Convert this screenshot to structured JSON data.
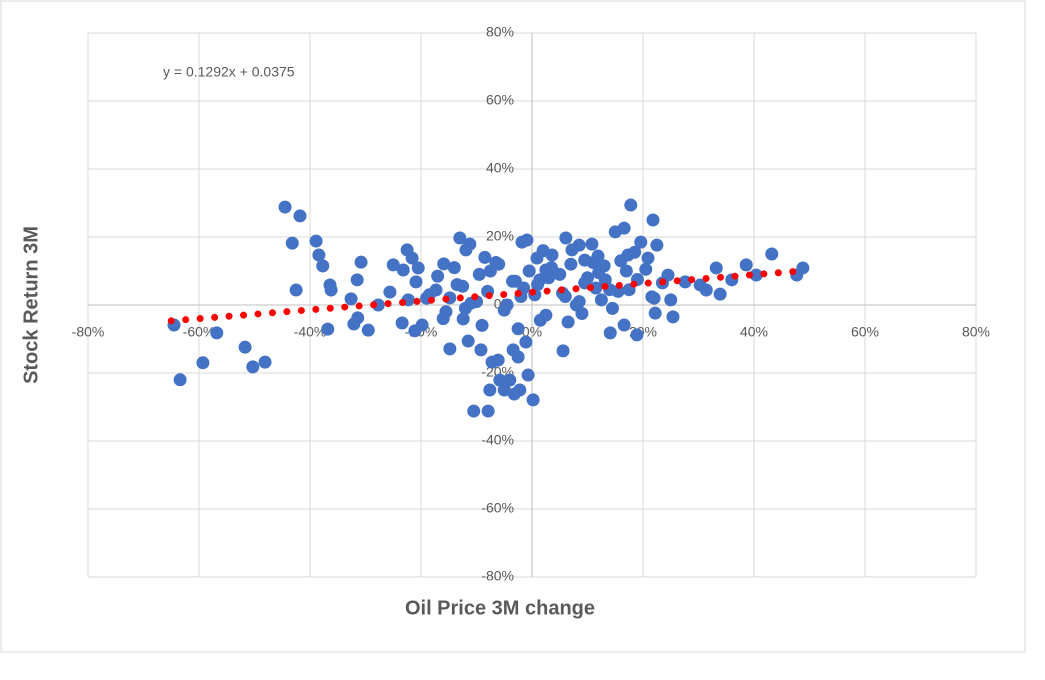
{
  "chart_data": {
    "type": "scatter",
    "x_label": "Oil Price 3M change",
    "y_label": "Stock Return 3M",
    "annotation": "y = 0.1292x + 0.0375",
    "xlim": [
      -80,
      80
    ],
    "ylim": [
      -80,
      80
    ],
    "xticks": [
      {
        "value": -80,
        "label": "-80%"
      },
      {
        "value": -60,
        "label": "-60%"
      },
      {
        "value": -40,
        "label": "-40%"
      },
      {
        "value": -20,
        "label": "-20%"
      },
      {
        "value": 0,
        "label": "0%"
      },
      {
        "value": 20,
        "label": "20%"
      },
      {
        "value": 40,
        "label": "40%"
      },
      {
        "value": 60,
        "label": "60%"
      },
      {
        "value": 80,
        "label": "80%"
      }
    ],
    "yticks": [
      {
        "value": -80,
        "label": "-80%"
      },
      {
        "value": -60,
        "label": "-60%"
      },
      {
        "value": -40,
        "label": "-40%"
      },
      {
        "value": -20,
        "label": "-20%"
      },
      {
        "value": 0,
        "label": "0%"
      },
      {
        "value": 20,
        "label": "20%"
      },
      {
        "value": 40,
        "label": "40%"
      },
      {
        "value": 60,
        "label": "60%"
      },
      {
        "value": 80,
        "label": "80%"
      }
    ],
    "grid": true,
    "series": [
      {
        "color": "#4472c4",
        "x": [
          -64.5,
          -63.4,
          -59.3,
          -56.8,
          -51.7,
          -50.3,
          -48.1,
          -44.5,
          -43.2,
          -41.8,
          -42.5,
          -38.9,
          -38.4,
          -37.7,
          -36.4,
          -36.2,
          -36.8,
          -32.6,
          -31.5,
          -30.8,
          -31.4,
          -32.1,
          -29.5,
          -27.7,
          -25.6,
          -25.0,
          -23.2,
          -22.5,
          -21.6,
          -20.5,
          -20.9,
          -22.3,
          -23.4,
          -21.1,
          -19.8,
          -17.3,
          -15.9,
          -14.8,
          -13.0,
          -11.9,
          -11.2,
          -14.8,
          -12.4,
          -11.5,
          -10.5,
          -7.9,
          -9.2,
          -7.6,
          -7.2,
          -6.1,
          -5.8,
          -5.0,
          -4.0,
          -3.2,
          -2.2,
          -0.7,
          0.2,
          -1.1,
          -2.5,
          -3.4,
          -0.9,
          -1.8,
          0.9,
          1.4,
          2.5,
          3.6,
          5.6,
          6.1,
          7.2,
          8.5,
          9.5,
          10.8,
          11.9,
          13.2,
          14.1,
          15.0,
          16.6,
          17.8,
          17.3,
          16.6,
          18.9,
          19.6,
          20.9,
          21.8,
          22.5,
          21.6,
          22.2,
          24.5,
          25.0,
          25.4,
          27.6,
          30.3,
          31.4,
          33.2,
          33.9,
          36.0,
          38.6,
          40.4,
          43.2,
          47.7,
          48.8,
          -18.5,
          -17.0,
          -15.5,
          -14.0,
          -12.5,
          -11.0,
          -9.5,
          -8.0,
          -6.5,
          -5.0,
          -3.5,
          -2.0,
          -0.5,
          1.0,
          2.5,
          4.0,
          5.5,
          7.0,
          8.5,
          10.0,
          11.5,
          13.0,
          14.5,
          16.0,
          17.5,
          19.0,
          20.5,
          22.0,
          23.5,
          -16.0,
          -13.5,
          -10.0,
          -7.5,
          -4.5,
          -1.5,
          1.5,
          3.0,
          6.0,
          9.0,
          12.0,
          15.5,
          18.5,
          -9.0,
          -6.0,
          -3.0,
          0.5,
          3.5,
          6.5,
          9.5,
          12.5,
          -19.0,
          -12.0,
          -8.5,
          -2.5,
          2.0,
          5.0,
          8.0,
          11.0,
          14.0,
          17.0
        ],
        "y": [
          -5.9,
          -22.0,
          -17.0,
          -8.2,
          -12.4,
          -18.2,
          -16.8,
          28.8,
          18.2,
          26.2,
          4.4,
          18.8,
          14.7,
          11.5,
          5.9,
          4.4,
          -7.1,
          1.8,
          7.4,
          12.6,
          -3.8,
          -5.6,
          -7.4,
          0.0,
          3.8,
          11.8,
          10.3,
          16.2,
          13.8,
          10.9,
          6.8,
          1.5,
          -5.3,
          -7.6,
          -5.9,
          4.4,
          12.1,
          2.1,
          19.7,
          16.2,
          17.9,
          -12.9,
          -4.1,
          -10.6,
          -31.2,
          -31.2,
          -13.2,
          -25.0,
          -16.8,
          -16.2,
          -22.1,
          -25.0,
          -22.1,
          -26.2,
          -25.0,
          -20.6,
          -27.9,
          -10.9,
          -15.3,
          -13.2,
          19.1,
          18.5,
          13.8,
          7.4,
          10.3,
          14.7,
          -13.5,
          19.7,
          16.2,
          17.6,
          13.2,
          17.9,
          14.4,
          7.4,
          -8.2,
          21.5,
          22.6,
          29.4,
          14.7,
          -5.9,
          -8.8,
          18.5,
          13.8,
          25.0,
          17.6,
          2.4,
          -2.4,
          8.8,
          1.5,
          -3.5,
          6.8,
          5.9,
          4.4,
          10.9,
          3.2,
          7.4,
          11.8,
          8.8,
          15.0,
          8.8,
          10.9,
          3.0,
          8.5,
          -2.0,
          11.0,
          5.5,
          0.5,
          9.0,
          4.0,
          12.5,
          -1.5,
          7.0,
          2.5,
          10.0,
          6.0,
          -3.0,
          9.5,
          3.5,
          12.0,
          1.0,
          8.0,
          5.0,
          11.5,
          -1.0,
          13.0,
          4.5,
          7.5,
          10.5,
          2.0,
          6.5,
          -4.0,
          6.0,
          1.0,
          10.0,
          0.0,
          5.0,
          -4.5,
          8.0,
          2.5,
          -2.5,
          9.5,
          4.0,
          15.5,
          -6.0,
          12.0,
          7.0,
          3.0,
          11.0,
          -5.0,
          6.5,
          1.5,
          2.0,
          -1.0,
          14.0,
          -7.0,
          16.0,
          9.0,
          0.0,
          12.5,
          4.5,
          10.0
        ]
      },
      {
        "color": "#ff0000",
        "x": [
          -65,
          47
        ],
        "y": [
          -4.65,
          9.82
        ]
      }
    ]
  }
}
